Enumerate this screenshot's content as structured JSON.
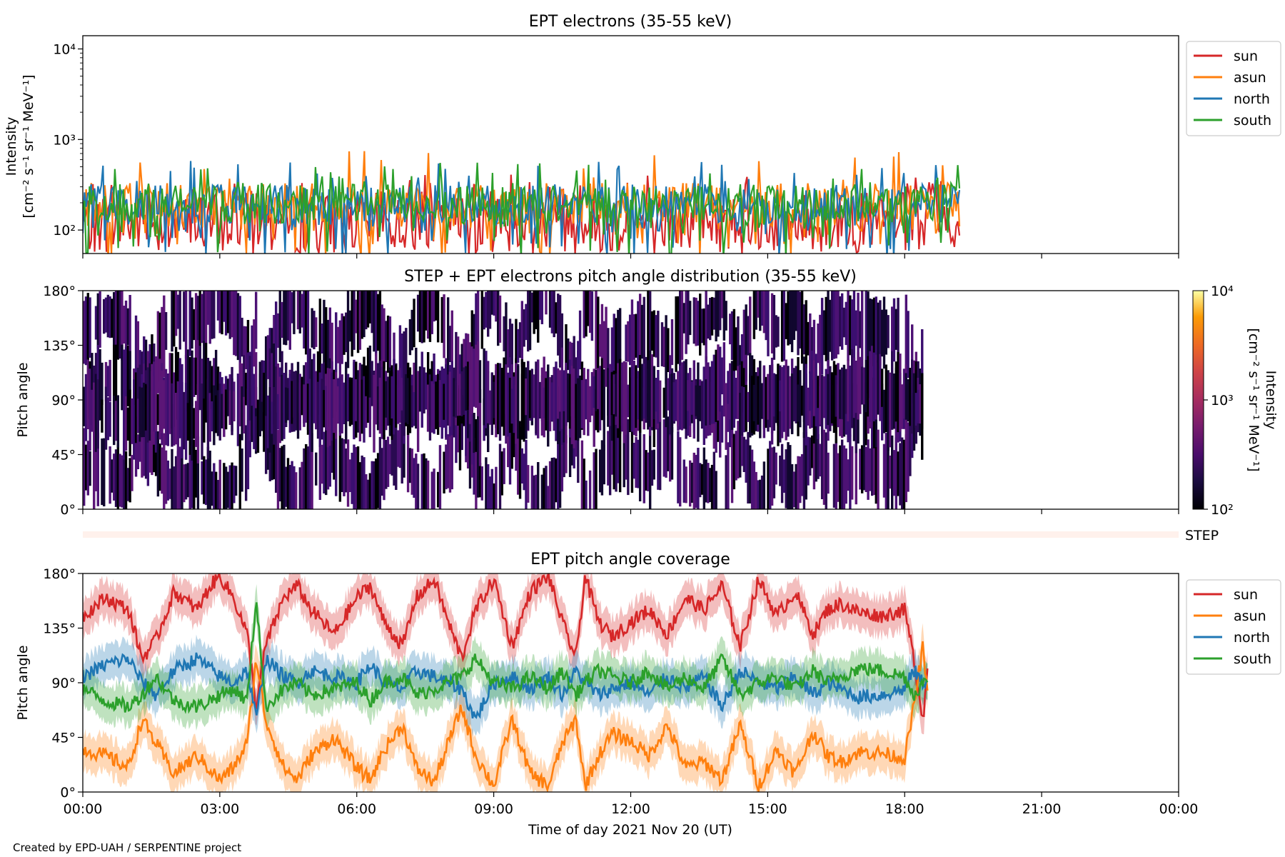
{
  "chart_data": [
    {
      "panel": "intensity",
      "type": "line",
      "title": "EPT electrons (35-55 keV)",
      "ylabel": [
        "Intensity",
        "[cm⁻² s⁻¹ sr⁻¹ MeV⁻¹]"
      ],
      "yscale": "log",
      "ylim": [
        55,
        14000
      ],
      "y_ticks": [
        {
          "value": 100,
          "label": "10²"
        },
        {
          "value": 1000,
          "label": "10³"
        },
        {
          "value": 10000,
          "label": "10⁴"
        }
      ],
      "xlim": [
        0,
        24
      ],
      "data_end_hour": 19.2,
      "legend": "outside-right",
      "series": [
        {
          "name": "sun",
          "color": "#d62728",
          "typical": [
            55,
            260
          ],
          "peak": 420
        },
        {
          "name": "asun",
          "color": "#ff7f0e",
          "typical": [
            110,
            330
          ],
          "peak": 780
        },
        {
          "name": "north",
          "color": "#1f77b4",
          "typical": [
            120,
            320
          ],
          "peak": 600
        },
        {
          "name": "south",
          "color": "#2ca02c",
          "typical": [
            120,
            320
          ],
          "peak": 560
        }
      ]
    },
    {
      "panel": "pad",
      "type": "heatmap",
      "title": "STEP + EPT electrons pitch angle distribution (35-55 keV)",
      "ylabel": "Pitch angle",
      "ylim": [
        0,
        180
      ],
      "y_ticks": [
        "0°",
        "45°",
        "90°",
        "135°",
        "180°"
      ],
      "xlim": [
        0,
        24
      ],
      "data_end_hour": 18.4,
      "colorbar": {
        "label": [
          "Intensity",
          "[cm⁻² s⁻¹ sr⁻¹ MeV⁻¹]"
        ],
        "scale": "log",
        "range": [
          100,
          10000
        ],
        "tick_labels": [
          "10²",
          "10³",
          "10⁴"
        ]
      }
    },
    {
      "panel": "step",
      "type": "heatmap",
      "label": "STEP"
    },
    {
      "panel": "coverage",
      "type": "line",
      "title": "EPT pitch angle coverage",
      "ylabel": "Pitch angle",
      "xlabel": "Time of day 2021 Nov 20 (UT)",
      "ylim": [
        0,
        180
      ],
      "y_ticks": [
        "0°",
        "45°",
        "90°",
        "135°",
        "180°"
      ],
      "x_ticks": [
        "00:00",
        "03:00",
        "06:00",
        "09:00",
        "12:00",
        "15:00",
        "18:00",
        "21:00",
        "00:00"
      ],
      "xlim": [
        0,
        24
      ],
      "data_end_hour": 18.5,
      "legend": "outside-right",
      "band_halfwidth_deg": 15,
      "series": [
        {
          "name": "sun",
          "color": "#d62728",
          "points": [
            [
              0,
              145
            ],
            [
              0.5,
              160
            ],
            [
              1,
              150
            ],
            [
              1.3,
              110
            ],
            [
              1.6,
              125
            ],
            [
              2,
              165
            ],
            [
              2.5,
              150
            ],
            [
              2.8,
              170
            ],
            [
              3,
              178
            ],
            [
              3.3,
              160
            ],
            [
              3.6,
              130
            ],
            [
              3.8,
              70
            ],
            [
              4,
              120
            ],
            [
              4.4,
              160
            ],
            [
              4.7,
              170
            ],
            [
              5,
              150
            ],
            [
              5.5,
              130
            ],
            [
              6,
              160
            ],
            [
              6.3,
              170
            ],
            [
              6.6,
              140
            ],
            [
              7,
              120
            ],
            [
              7.3,
              160
            ],
            [
              7.7,
              175
            ],
            [
              8,
              140
            ],
            [
              8.3,
              110
            ],
            [
              8.6,
              150
            ],
            [
              9,
              175
            ],
            [
              9.4,
              120
            ],
            [
              9.8,
              165
            ],
            [
              10.2,
              178
            ],
            [
              10.5,
              140
            ],
            [
              10.8,
              110
            ],
            [
              11,
              178
            ],
            [
              11.3,
              140
            ],
            [
              11.6,
              128
            ],
            [
              12,
              140
            ],
            [
              12.4,
              150
            ],
            [
              12.8,
              130
            ],
            [
              13.2,
              160
            ],
            [
              13.6,
              150
            ],
            [
              14,
              170
            ],
            [
              14.4,
              120
            ],
            [
              14.8,
              175
            ],
            [
              15.2,
              145
            ],
            [
              15.6,
              165
            ],
            [
              16,
              130
            ],
            [
              16.3,
              150
            ],
            [
              16.6,
              155
            ],
            [
              17,
              148
            ],
            [
              17.5,
              145
            ],
            [
              18,
              150
            ],
            [
              18.2,
              110
            ],
            [
              18.4,
              60
            ],
            [
              18.5,
              100
            ]
          ]
        },
        {
          "name": "asun",
          "color": "#ff7f0e",
          "points": [
            [
              0,
              35
            ],
            [
              0.5,
              30
            ],
            [
              1,
              20
            ],
            [
              1.3,
              60
            ],
            [
              1.6,
              40
            ],
            [
              2,
              15
            ],
            [
              2.5,
              30
            ],
            [
              3,
              10
            ],
            [
              3.3,
              20
            ],
            [
              3.6,
              40
            ],
            [
              3.8,
              110
            ],
            [
              4,
              60
            ],
            [
              4.4,
              20
            ],
            [
              4.7,
              10
            ],
            [
              5,
              30
            ],
            [
              5.5,
              45
            ],
            [
              6,
              20
            ],
            [
              6.3,
              10
            ],
            [
              6.6,
              35
            ],
            [
              7,
              55
            ],
            [
              7.3,
              20
            ],
            [
              7.7,
              8
            ],
            [
              8,
              40
            ],
            [
              8.3,
              70
            ],
            [
              8.6,
              30
            ],
            [
              9,
              5
            ],
            [
              9.4,
              60
            ],
            [
              9.8,
              15
            ],
            [
              10.2,
              5
            ],
            [
              10.5,
              40
            ],
            [
              10.8,
              60
            ],
            [
              11,
              5
            ],
            [
              11.3,
              30
            ],
            [
              11.6,
              48
            ],
            [
              12,
              42
            ],
            [
              12.4,
              30
            ],
            [
              12.8,
              55
            ],
            [
              13.2,
              20
            ],
            [
              13.6,
              25
            ],
            [
              14,
              10
            ],
            [
              14.4,
              55
            ],
            [
              14.8,
              5
            ],
            [
              15.2,
              35
            ],
            [
              15.6,
              15
            ],
            [
              16,
              50
            ],
            [
              16.3,
              30
            ],
            [
              16.6,
              25
            ],
            [
              17,
              33
            ],
            [
              17.5,
              32
            ],
            [
              18,
              28
            ],
            [
              18.2,
              70
            ],
            [
              18.4,
              120
            ],
            [
              18.5,
              80
            ]
          ]
        },
        {
          "name": "north",
          "color": "#1f77b4",
          "points": [
            [
              0,
              95
            ],
            [
              0.5,
              105
            ],
            [
              1,
              110
            ],
            [
              1.3,
              90
            ],
            [
              1.6,
              80
            ],
            [
              2,
              100
            ],
            [
              2.5,
              110
            ],
            [
              3,
              95
            ],
            [
              3.3,
              90
            ],
            [
              3.6,
              100
            ],
            [
              3.8,
              60
            ],
            [
              4,
              110
            ],
            [
              4.4,
              95
            ],
            [
              4.7,
              90
            ],
            [
              5,
              100
            ],
            [
              5.5,
              95
            ],
            [
              6,
              90
            ],
            [
              6.3,
              105
            ],
            [
              6.6,
              90
            ],
            [
              7,
              85
            ],
            [
              7.3,
              100
            ],
            [
              7.7,
              95
            ],
            [
              8,
              90
            ],
            [
              8.3,
              85
            ],
            [
              8.6,
              60
            ],
            [
              9,
              90
            ],
            [
              9.4,
              95
            ],
            [
              9.8,
              85
            ],
            [
              10.2,
              95
            ],
            [
              10.5,
              80
            ],
            [
              10.8,
              100
            ],
            [
              11,
              90
            ],
            [
              11.3,
              80
            ],
            [
              11.6,
              85
            ],
            [
              12,
              90
            ],
            [
              12.4,
              80
            ],
            [
              12.8,
              95
            ],
            [
              13.2,
              85
            ],
            [
              13.6,
              95
            ],
            [
              14,
              70
            ],
            [
              14.4,
              100
            ],
            [
              14.8,
              90
            ],
            [
              15.2,
              85
            ],
            [
              15.6,
              95
            ],
            [
              16,
              80
            ],
            [
              16.3,
              90
            ],
            [
              16.6,
              85
            ],
            [
              17,
              78
            ],
            [
              17.5,
              80
            ],
            [
              18,
              85
            ],
            [
              18.2,
              100
            ],
            [
              18.4,
              90
            ],
            [
              18.5,
              92
            ]
          ]
        },
        {
          "name": "south",
          "color": "#2ca02c",
          "points": [
            [
              0,
              85
            ],
            [
              0.5,
              75
            ],
            [
              1,
              70
            ],
            [
              1.3,
              80
            ],
            [
              1.6,
              95
            ],
            [
              2,
              75
            ],
            [
              2.5,
              70
            ],
            [
              3,
              80
            ],
            [
              3.3,
              85
            ],
            [
              3.6,
              75
            ],
            [
              3.8,
              160
            ],
            [
              4,
              70
            ],
            [
              4.4,
              85
            ],
            [
              4.7,
              90
            ],
            [
              5,
              80
            ],
            [
              5.5,
              85
            ],
            [
              6,
              90
            ],
            [
              6.3,
              75
            ],
            [
              6.6,
              90
            ],
            [
              7,
              95
            ],
            [
              7.3,
              80
            ],
            [
              7.7,
              85
            ],
            [
              8,
              90
            ],
            [
              8.3,
              95
            ],
            [
              8.6,
              110
            ],
            [
              9,
              90
            ],
            [
              9.4,
              85
            ],
            [
              9.8,
              95
            ],
            [
              10.2,
              85
            ],
            [
              10.5,
              100
            ],
            [
              10.8,
              80
            ],
            [
              11,
              90
            ],
            [
              11.3,
              100
            ],
            [
              11.6,
              95
            ],
            [
              12,
              90
            ],
            [
              12.4,
              100
            ],
            [
              12.8,
              85
            ],
            [
              13.2,
              95
            ],
            [
              13.6,
              85
            ],
            [
              14,
              110
            ],
            [
              14.4,
              80
            ],
            [
              14.8,
              90
            ],
            [
              15.2,
              95
            ],
            [
              15.6,
              85
            ],
            [
              16,
              100
            ],
            [
              16.3,
              90
            ],
            [
              16.6,
              95
            ],
            [
              17,
              102
            ],
            [
              17.5,
              100
            ],
            [
              18,
              95
            ],
            [
              18.2,
              80
            ],
            [
              18.4,
              90
            ],
            [
              18.5,
              88
            ]
          ]
        }
      ]
    }
  ],
  "footer": "Created by EPD-UAH / SERPENTINE project"
}
